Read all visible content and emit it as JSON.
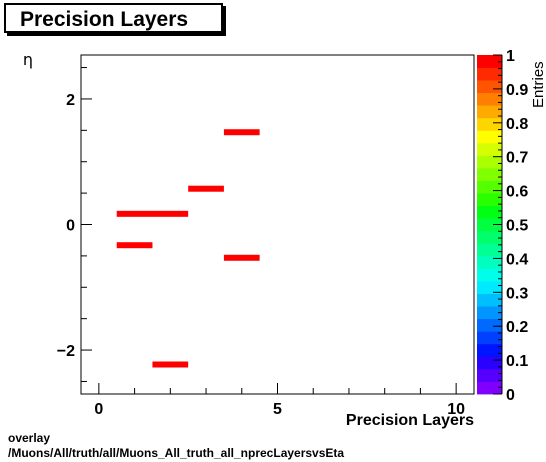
{
  "title": "Precision Layers",
  "footer": {
    "line1": "overlay",
    "line2": "/Muons/All/truth/all/Muons_All_truth_all_nprecLayersvsEta"
  },
  "chart_data": {
    "type": "heatmap",
    "title": "Precision Layers",
    "xlabel": "Precision Layers",
    "ylabel": "η",
    "zlabel": "Entries",
    "xlim": [
      -0.5,
      10.5
    ],
    "ylim": [
      -2.7,
      2.7
    ],
    "zlim": [
      0,
      1
    ],
    "x_ticks": [
      "0",
      "5",
      "10"
    ],
    "y_ticks": [
      "−2",
      "0",
      "2"
    ],
    "z_ticks": [
      "0",
      "0.1",
      "0.2",
      "0.3",
      "0.4",
      "0.5",
      "0.6",
      "0.7",
      "0.8",
      "0.9",
      "1"
    ],
    "cells": [
      {
        "x0": 0.5,
        "x1": 2.5,
        "y": 0.17,
        "value": 1
      },
      {
        "x0": 0.5,
        "x1": 1.5,
        "y": -0.33,
        "value": 1
      },
      {
        "x0": 2.5,
        "x1": 3.5,
        "y": 0.57,
        "value": 1
      },
      {
        "x0": 3.5,
        "x1": 4.5,
        "y": 1.47,
        "value": 1
      },
      {
        "x0": 3.5,
        "x1": 4.5,
        "y": -0.53,
        "value": 1
      },
      {
        "x0": 1.5,
        "x1": 2.5,
        "y": -2.23,
        "value": 1
      }
    ],
    "palette": [
      "#7f00ff",
      "#5500ff",
      "#2a00ff",
      "#0015ff",
      "#0040ff",
      "#006aff",
      "#0095ff",
      "#00bfff",
      "#00eaff",
      "#00ffea",
      "#00ffbf",
      "#00ff95",
      "#00ff6a",
      "#00ff40",
      "#00ff15",
      "#2aff00",
      "#55ff00",
      "#80ff00",
      "#aaff00",
      "#d5ff00",
      "#ffff00",
      "#ffd500",
      "#ffaa00",
      "#ff8000",
      "#ff5500",
      "#ff2a00",
      "#ff0000"
    ]
  }
}
